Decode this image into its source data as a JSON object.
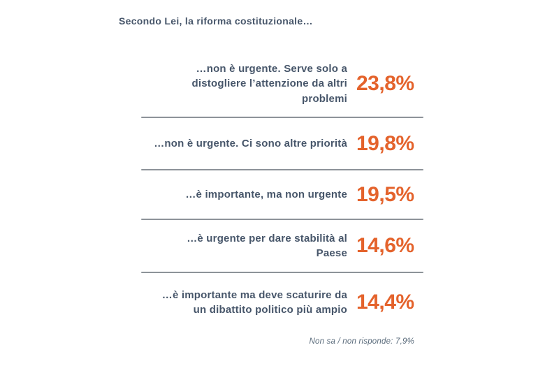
{
  "title": "Secondo Lei, la riforma costituzionale…",
  "rows": [
    {
      "label": "…non è urgente. Serve solo a\ndistogliere l’attenzione da altri\nproblemi",
      "value": "23,8%"
    },
    {
      "label": "…non è urgente. Ci sono altre priorità",
      "value": "19,8%"
    },
    {
      "label": "…è importante, ma non urgente",
      "value": "19,5%"
    },
    {
      "label": "…è urgente per dare stabilità al\nPaese",
      "value": "14,6%"
    },
    {
      "label": "…è importante ma deve scaturire da\nun dibattito politico più ampio",
      "value": "14,4%"
    }
  ],
  "footnote": "Non sa / non risponde: 7,9%",
  "colors": {
    "label_text": "#47566a",
    "value_text": "#e4632c",
    "divider": "#8d9399",
    "footnote_text": "#5b6c7c",
    "background": "#ffffff"
  },
  "chart_data": {
    "type": "table",
    "title": "Secondo Lei, la riforma costituzionale…",
    "categories": [
      "…non è urgente. Serve solo a distogliere l’attenzione da altri problemi",
      "…non è urgente. Ci sono altre priorità",
      "…è importante, ma non urgente",
      "…è urgente per dare stabilità al Paese",
      "…è importante ma deve scaturire da un dibattito politico più ampio"
    ],
    "values": [
      23.8,
      19.8,
      19.5,
      14.6,
      14.4
    ],
    "value_labels": [
      "23,8%",
      "19,8%",
      "19,5%",
      "14,6%",
      "14,4%"
    ],
    "unit": "%",
    "annotation": "Non sa / non risponde: 7,9%",
    "annotation_value": 7.9,
    "legend_position": "none",
    "grid": false
  }
}
